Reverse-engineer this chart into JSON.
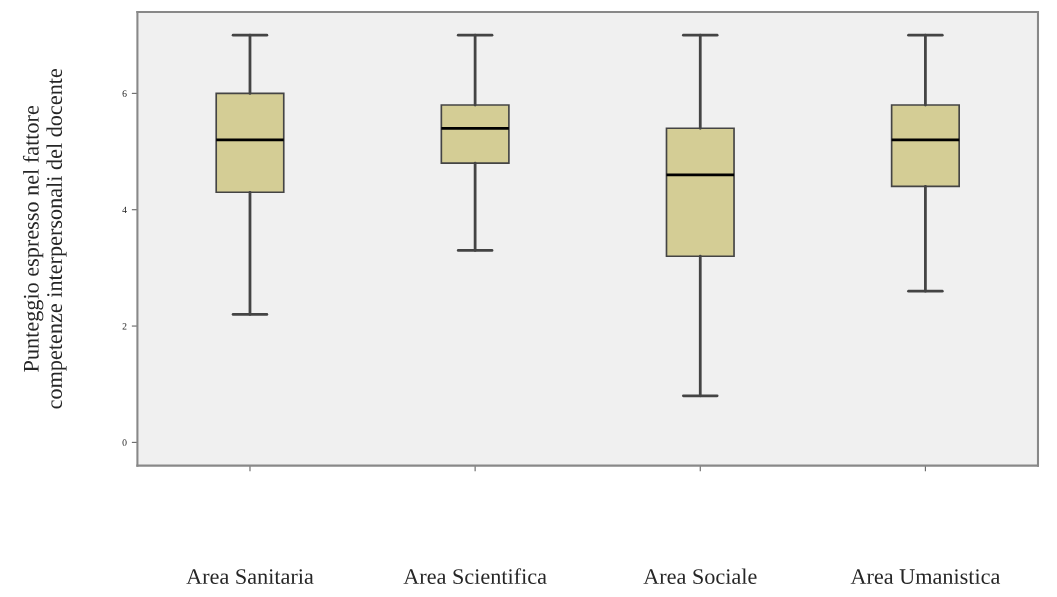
{
  "chart_data": {
    "type": "box",
    "ylabel": "Punteggio espresso nel fattore\ncompetenze interpersonali del docente",
    "categories": [
      "Area Sanitaria",
      "Area Scientifica",
      "Area Sociale",
      "Area Umanistica"
    ],
    "boxes": [
      {
        "low": 2.2,
        "q1": 4.3,
        "median": 5.2,
        "q3": 6.0,
        "high": 7.0
      },
      {
        "low": 3.3,
        "q1": 4.8,
        "median": 5.4,
        "q3": 5.8,
        "high": 7.0
      },
      {
        "low": 0.8,
        "q1": 3.2,
        "median": 4.6,
        "q3": 5.4,
        "high": 7.0
      },
      {
        "low": 2.6,
        "q1": 4.4,
        "median": 5.2,
        "q3": 5.8,
        "high": 7.0
      }
    ],
    "color": "#d4cd95",
    "ylim": [
      -0.4,
      7.4
    ],
    "yticks": [
      0,
      2,
      4,
      6
    ],
    "grid": false
  }
}
